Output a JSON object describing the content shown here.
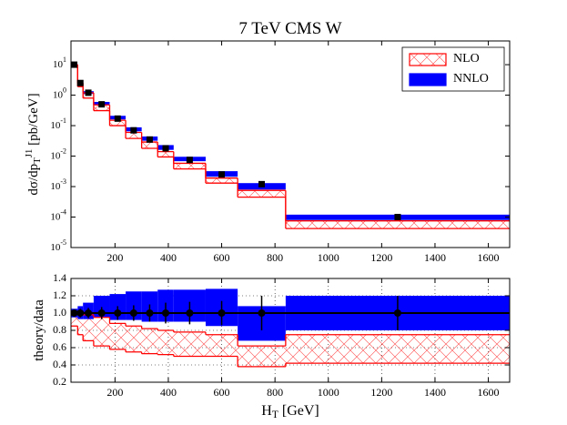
{
  "chart_data": [
    {
      "type": "step-band",
      "title": "7 TeV CMS W",
      "ylabel": "dσ/dp_{T}^{J1} [pb/GeV]",
      "log_y": true,
      "legend": "upper right",
      "bins": [
        35,
        60,
        80,
        120,
        180,
        240,
        300,
        360,
        420,
        540,
        660,
        840,
        1680
      ],
      "xlim": [
        35,
        1680
      ],
      "xticks": [
        200,
        400,
        600,
        800,
        1000,
        1200,
        1400,
        1600
      ],
      "ylim": [
        1e-05,
        60
      ],
      "yticks": [
        {
          "value": 1e-05,
          "label": "10^{-5}"
        },
        {
          "value": 0.0001,
          "label": "10^{-4}"
        },
        {
          "value": 0.001,
          "label": "10^{-3}"
        },
        {
          "value": 0.01,
          "label": "10^{-2}"
        },
        {
          "value": 0.1,
          "label": "10^{-1}"
        },
        {
          "value": 1,
          "label": "10^{0}"
        },
        {
          "value": 10,
          "label": "10^{1}"
        }
      ],
      "series": [
        {
          "name": "NLO",
          "color": "#ff0000",
          "style": "hatch",
          "low": [
            8.5,
            1.9,
            0.8,
            0.31,
            0.1,
            0.038,
            0.018,
            0.0094,
            0.0038,
            0.0013,
            0.00045,
            4.2e-05
          ],
          "high": [
            10,
            2.5,
            1.2,
            0.48,
            0.15,
            0.06,
            0.029,
            0.014,
            0.0058,
            0.0019,
            0.00075,
            7.5e-05
          ]
        },
        {
          "name": "NNLO",
          "color": "#0000ff",
          "style": "fill",
          "low": [
            9.5,
            2.3,
            1.1,
            0.48,
            0.16,
            0.065,
            0.032,
            0.016,
            0.0068,
            0.0021,
            0.0008,
            8e-05
          ],
          "high": [
            10.5,
            2.7,
            1.35,
            0.6,
            0.21,
            0.088,
            0.044,
            0.023,
            0.0095,
            0.0032,
            0.0013,
            0.00012
          ]
        }
      ],
      "points": {
        "x": [
          47,
          70,
          100,
          150,
          210,
          270,
          330,
          390,
          480,
          600,
          750,
          1260
        ],
        "values": [
          10,
          2.5,
          1.2,
          0.5,
          0.17,
          0.07,
          0.035,
          0.018,
          0.0075,
          0.0025,
          0.0012,
          0.0001
        ],
        "marker": "square"
      }
    },
    {
      "type": "step-band",
      "ylabel": "theory/data",
      "xlabel": "H_{T} [GeV]",
      "grid": true,
      "reference": 1,
      "bins": [
        35,
        60,
        80,
        120,
        180,
        240,
        300,
        360,
        420,
        540,
        660,
        840,
        1680
      ],
      "xlim": [
        35,
        1680
      ],
      "xticks": [
        200,
        400,
        600,
        800,
        1000,
        1200,
        1400,
        1600
      ],
      "ylim": [
        0.2,
        1.4
      ],
      "yticks": [
        0.2,
        0.4,
        0.6,
        0.8,
        {
          "value": 1,
          "label": "1.0"
        },
        1.2,
        1.4
      ],
      "series": [
        {
          "name": "NLO",
          "color": "#ff0000",
          "style": "hatch",
          "low": [
            0.85,
            0.75,
            0.68,
            0.62,
            0.58,
            0.55,
            0.53,
            0.52,
            0.5,
            0.5,
            0.38,
            0.42
          ],
          "high": [
            1.0,
            1.02,
            0.98,
            0.95,
            0.88,
            0.85,
            0.82,
            0.8,
            0.78,
            0.75,
            0.62,
            0.75
          ]
        },
        {
          "name": "NNLO",
          "color": "#0000ff",
          "style": "fill",
          "low": [
            0.95,
            0.93,
            0.93,
            0.95,
            0.92,
            0.92,
            0.9,
            0.9,
            0.9,
            0.85,
            0.68,
            0.8
          ],
          "high": [
            1.05,
            1.08,
            1.12,
            1.2,
            1.22,
            1.25,
            1.25,
            1.27,
            1.27,
            1.28,
            1.08,
            1.2
          ]
        }
      ],
      "points": {
        "x": [
          47,
          70,
          100,
          150,
          210,
          270,
          330,
          390,
          480,
          600,
          750,
          1260
        ],
        "values": [
          1,
          1,
          1,
          1,
          1,
          1,
          1,
          1,
          1,
          1,
          1,
          1
        ],
        "errors": [
          0.04,
          0.05,
          0.06,
          0.07,
          0.08,
          0.09,
          0.1,
          0.12,
          0.13,
          0.14,
          0.2,
          0.2
        ],
        "marker": "circle"
      }
    }
  ]
}
